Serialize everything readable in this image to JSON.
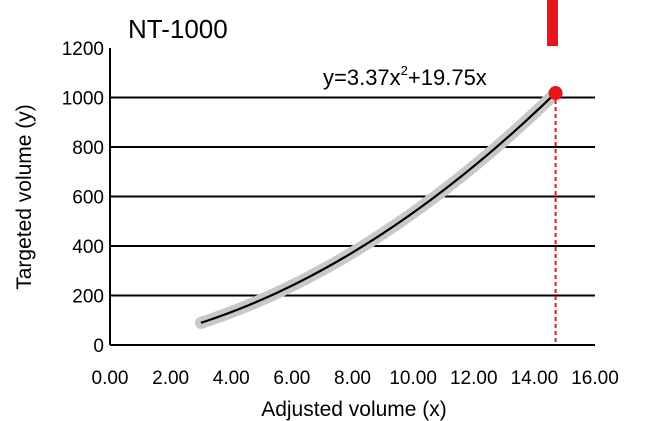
{
  "chart_data": {
    "type": "line",
    "title": "NT-1000",
    "xlabel": "Adjusted volume (x)",
    "ylabel": "Targeted volume (y)",
    "xlim": [
      0,
      16
    ],
    "ylim": [
      0,
      1200
    ],
    "x_ticks": [
      "0.00",
      "2.00",
      "4.00",
      "6.00",
      "8.00",
      "10.00",
      "12.00",
      "14.00",
      "16.00"
    ],
    "y_ticks": [
      "0",
      "200",
      "400",
      "600",
      "800",
      "1000",
      "1200"
    ],
    "grid": "horizontal",
    "annotation": {
      "prefix": "y=3.37x",
      "superscript": "2",
      "suffix": "+19.75x"
    },
    "fit": {
      "a": 3.37,
      "b": 19.75,
      "x_start": 3.0,
      "x_end": 14.7
    },
    "confidence_band_halfwidth": 22,
    "highlight_point": {
      "x": 14.7,
      "y": 1018
    },
    "colors": {
      "curve": "#000000",
      "band": "#c8c8c8",
      "highlight": "#e8161b",
      "marker_bar": "#e8161b",
      "grid": "#000000"
    }
  }
}
